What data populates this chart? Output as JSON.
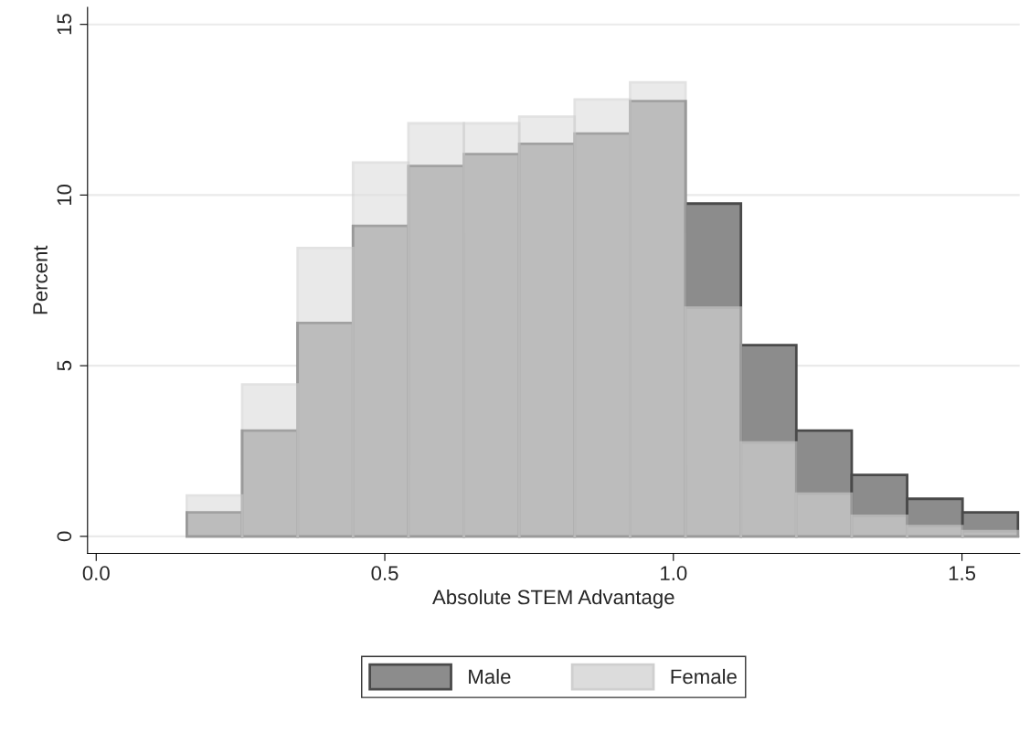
{
  "chart_data": {
    "type": "histogram",
    "xlabel": "Absolute STEM Advantage",
    "ylabel": "Percent",
    "bins": [
      0.157,
      0.253,
      0.349,
      0.445,
      0.541,
      0.637,
      0.733,
      0.829,
      0.925,
      1.021,
      1.117,
      1.213,
      1.309,
      1.405,
      1.501,
      1.597
    ],
    "series": [
      {
        "name": "Male",
        "color": "#8c8c8c",
        "values": [
          0.7,
          3.1,
          6.25,
          9.1,
          10.85,
          11.2,
          11.5,
          11.8,
          12.75,
          9.75,
          5.6,
          3.1,
          1.8,
          1.1,
          0.7
        ]
      },
      {
        "name": "Female",
        "color": "#dcdcdc",
        "values": [
          1.2,
          4.45,
          8.45,
          10.95,
          12.1,
          12.1,
          12.3,
          12.8,
          13.3,
          6.7,
          2.75,
          1.25,
          0.6,
          0.3,
          0.15
        ]
      }
    ],
    "xlim": [
      -0.015,
      1.6
    ],
    "ylim": [
      -0.5,
      15.5
    ],
    "xticks": [
      {
        "value": 0,
        "label": "0.0"
      },
      {
        "value": 0.5,
        "label": "0.5"
      },
      {
        "value": 1,
        "label": "1.0"
      },
      {
        "value": 1.5,
        "label": "1.5"
      }
    ],
    "yticks": [
      0,
      5,
      10,
      15
    ],
    "grid": "y",
    "legend": "bottom"
  }
}
